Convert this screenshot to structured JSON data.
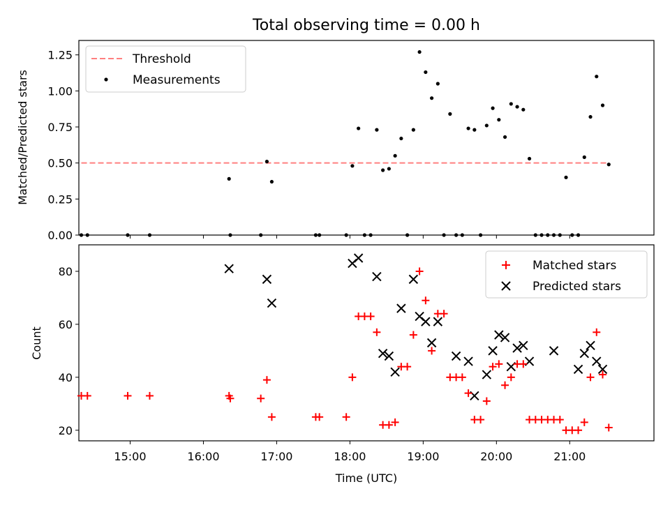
{
  "title": "Total observing time = 0.00 h",
  "colors": {
    "threshold": "#ff7f7f",
    "measurements": "#000000",
    "matched": "#ff0000",
    "predicted": "#000000",
    "axes": "#000000",
    "background": "#ffffff"
  },
  "chart_data": [
    {
      "type": "scatter",
      "panel": "top",
      "ylabel": "Matched/Predicted stars",
      "xlabel": "",
      "xlim": [
        "14:18",
        "22:09"
      ],
      "ylim": [
        0,
        1.35
      ],
      "yticks": [
        "0.00",
        "0.25",
        "0.50",
        "0.75",
        "1.00",
        "1.25"
      ],
      "ytick_values": [
        0,
        0.25,
        0.5,
        0.75,
        1.0,
        1.25
      ],
      "xtick_values": [
        "15:00",
        "16:00",
        "17:00",
        "18:00",
        "19:00",
        "20:00",
        "21:00"
      ],
      "grid": false,
      "legend": {
        "position": "upper left",
        "entries": [
          "Threshold",
          "Measurements"
        ]
      },
      "series": [
        {
          "name": "Threshold",
          "kind": "dashed-line",
          "x": [
            "14:20",
            "21:32"
          ],
          "y": [
            0.5,
            0.5
          ]
        },
        {
          "name": "Measurements",
          "kind": "dot",
          "x": [
            "14:20",
            "14:25",
            "14:58",
            "15:16",
            "16:21",
            "16:22",
            "16:47",
            "16:52",
            "16:56",
            "17:32",
            "17:35",
            "17:57",
            "18:02",
            "18:07",
            "18:12",
            "18:17",
            "18:22",
            "18:27",
            "18:32",
            "18:37",
            "18:42",
            "18:47",
            "18:52",
            "18:57",
            "19:02",
            "19:07",
            "19:12",
            "19:17",
            "19:22",
            "19:27",
            "19:32",
            "19:37",
            "19:42",
            "19:47",
            "19:52",
            "19:57",
            "20:02",
            "20:07",
            "20:12",
            "20:17",
            "20:22",
            "20:27",
            "20:32",
            "20:37",
            "20:42",
            "20:47",
            "20:52",
            "20:57",
            "21:02",
            "21:07",
            "21:12",
            "21:17",
            "21:22",
            "21:27",
            "21:32"
          ],
          "y": [
            0,
            0,
            0,
            0,
            0.39,
            0,
            0,
            0.51,
            0.37,
            0,
            0,
            0,
            0.48,
            0.74,
            0,
            0,
            0.73,
            0.45,
            0.46,
            0.55,
            0.67,
            0,
            0.73,
            1.27,
            1.13,
            0.95,
            1.05,
            0,
            0.84,
            0,
            0,
            0.74,
            0.73,
            0,
            0.76,
            0.88,
            0.8,
            0.68,
            0.91,
            0.89,
            0.87,
            0.53,
            0,
            0,
            0,
            0,
            0,
            0.4,
            0,
            0,
            0.54,
            0.82,
            1.1,
            0.9,
            0.49
          ]
        }
      ]
    },
    {
      "type": "scatter",
      "panel": "bottom",
      "xlabel": "Time (UTC)",
      "ylabel": "Count",
      "xlim": [
        "14:18",
        "22:09"
      ],
      "ylim": [
        16,
        90
      ],
      "yticks": [
        "20",
        "40",
        "60",
        "80"
      ],
      "ytick_values": [
        20,
        40,
        60,
        80
      ],
      "xticks": [
        "15:00",
        "16:00",
        "17:00",
        "18:00",
        "19:00",
        "20:00",
        "21:00"
      ],
      "xtick_values": [
        "15:00",
        "16:00",
        "17:00",
        "18:00",
        "19:00",
        "20:00",
        "21:00"
      ],
      "grid": false,
      "legend": {
        "position": "upper right",
        "entries": [
          "Matched stars",
          "Predicted stars"
        ]
      },
      "series": [
        {
          "name": "Matched stars",
          "kind": "plus",
          "x": [
            "14:20",
            "14:25",
            "14:58",
            "15:16",
            "16:21",
            "16:22",
            "16:47",
            "16:52",
            "16:56",
            "17:32",
            "17:35",
            "17:57",
            "18:02",
            "18:07",
            "18:12",
            "18:17",
            "18:22",
            "18:27",
            "18:32",
            "18:37",
            "18:42",
            "18:47",
            "18:52",
            "18:57",
            "19:02",
            "19:07",
            "19:12",
            "19:17",
            "19:22",
            "19:27",
            "19:32",
            "19:37",
            "19:42",
            "19:47",
            "19:52",
            "19:57",
            "20:02",
            "20:07",
            "20:12",
            "20:17",
            "20:22",
            "20:27",
            "20:32",
            "20:37",
            "20:42",
            "20:47",
            "20:52",
            "20:57",
            "21:02",
            "21:07",
            "21:12",
            "21:17",
            "21:22",
            "21:27",
            "21:32"
          ],
          "y": [
            33,
            33,
            33,
            33,
            33,
            32,
            32,
            39,
            25,
            25,
            25,
            25,
            40,
            63,
            63,
            63,
            57,
            22,
            22,
            23,
            44,
            44,
            56,
            80,
            69,
            50,
            64,
            64,
            40,
            40,
            40,
            34,
            24,
            24,
            31,
            44,
            45,
            37,
            40,
            45,
            45,
            24,
            24,
            24,
            24,
            24,
            24,
            20,
            20,
            20,
            23,
            40,
            57,
            41,
            21
          ]
        },
        {
          "name": "Predicted stars",
          "kind": "x",
          "x": [
            "16:21",
            "16:52",
            "16:56",
            "18:02",
            "18:07",
            "18:22",
            "18:27",
            "18:32",
            "18:37",
            "18:42",
            "18:52",
            "18:57",
            "19:02",
            "19:07",
            "19:12",
            "19:27",
            "19:37",
            "19:42",
            "19:52",
            "19:57",
            "20:02",
            "20:07",
            "20:12",
            "20:17",
            "20:22",
            "20:27",
            "20:47",
            "21:07",
            "21:12",
            "21:17",
            "21:22",
            "21:27"
          ],
          "y": [
            81,
            77,
            68,
            83,
            85,
            78,
            49,
            48,
            42,
            66,
            77,
            63,
            61,
            53,
            61,
            48,
            46,
            33,
            41,
            50,
            56,
            55,
            44,
            51,
            52,
            46,
            50,
            43,
            49,
            52,
            46,
            43
          ]
        }
      ]
    }
  ]
}
